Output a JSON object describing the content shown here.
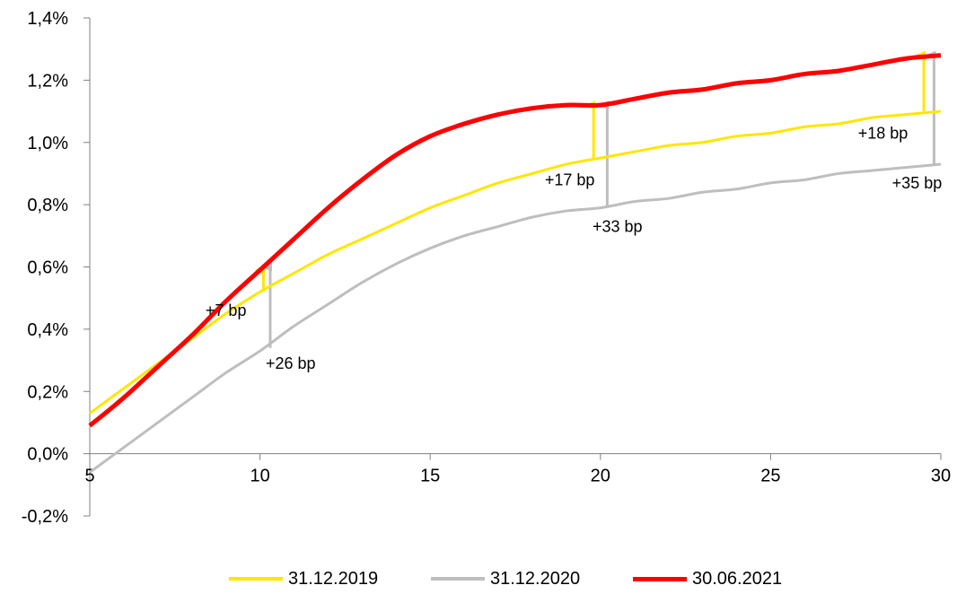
{
  "chart_data": {
    "type": "line",
    "title": "",
    "xlabel": "",
    "ylabel": "",
    "xlim": [
      5,
      30
    ],
    "ylim": [
      -0.2,
      1.4
    ],
    "x_ticks": [
      5,
      10,
      15,
      20,
      25,
      30
    ],
    "x_tick_labels": [
      "5",
      "10",
      "15",
      "20",
      "25",
      "30"
    ],
    "y_ticks": [
      -0.2,
      0.0,
      0.2,
      0.4,
      0.6,
      0.8,
      1.0,
      1.2,
      1.4
    ],
    "y_tick_labels": [
      "-0,2%",
      "0,0%",
      "0,2%",
      "0,4%",
      "0,6%",
      "0,8%",
      "1,0%",
      "1,2%",
      "1,4%"
    ],
    "grid": false,
    "legend_position": "bottom",
    "series": [
      {
        "name": "31.12.2019",
        "color": "#FFE600",
        "x": [
          5,
          6,
          7,
          8,
          9,
          10,
          11,
          12,
          13,
          14,
          15,
          16,
          17,
          18,
          19,
          20,
          21,
          22,
          23,
          24,
          25,
          26,
          27,
          28,
          29,
          30
        ],
        "values": [
          0.13,
          0.21,
          0.29,
          0.37,
          0.45,
          0.52,
          0.58,
          0.64,
          0.69,
          0.74,
          0.79,
          0.83,
          0.87,
          0.9,
          0.93,
          0.95,
          0.97,
          0.99,
          1.0,
          1.02,
          1.03,
          1.05,
          1.06,
          1.08,
          1.09,
          1.1
        ]
      },
      {
        "name": "31.12.2020",
        "color": "#BEBEBE",
        "x": [
          5,
          6,
          7,
          8,
          9,
          10,
          11,
          12,
          13,
          14,
          15,
          16,
          17,
          18,
          19,
          20,
          21,
          22,
          23,
          24,
          25,
          26,
          27,
          28,
          29,
          30
        ],
        "values": [
          -0.06,
          0.02,
          0.1,
          0.18,
          0.26,
          0.33,
          0.41,
          0.48,
          0.55,
          0.61,
          0.66,
          0.7,
          0.73,
          0.76,
          0.78,
          0.79,
          0.81,
          0.82,
          0.84,
          0.85,
          0.87,
          0.88,
          0.9,
          0.91,
          0.92,
          0.93
        ]
      },
      {
        "name": "30.06.2021",
        "color": "#FF0000",
        "x": [
          5,
          6,
          7,
          8,
          9,
          10,
          11,
          12,
          13,
          14,
          15,
          16,
          17,
          18,
          19,
          20,
          21,
          22,
          23,
          24,
          25,
          26,
          27,
          28,
          29,
          30
        ],
        "values": [
          0.09,
          0.18,
          0.28,
          0.38,
          0.49,
          0.59,
          0.69,
          0.79,
          0.88,
          0.96,
          1.02,
          1.06,
          1.09,
          1.11,
          1.12,
          1.12,
          1.14,
          1.16,
          1.17,
          1.19,
          1.2,
          1.22,
          1.23,
          1.25,
          1.27,
          1.28
        ]
      }
    ],
    "annotations": [
      {
        "text": "+7 bp",
        "x": 9,
        "y": 0.46,
        "from_series": "31.12.2019",
        "to_series": "30.06.2021",
        "arrow_x": 10.1,
        "arrow_from": 0.52,
        "arrow_to": 0.59
      },
      {
        "text": "+26 bp",
        "x": 10.9,
        "y": 0.29,
        "from_series": "31.12.2020",
        "to_series": "30.06.2021",
        "arrow_x": 10.3,
        "arrow_from": 0.34,
        "arrow_to": 0.6
      },
      {
        "text": "+17 bp",
        "x": 19.1,
        "y": 0.88,
        "from_series": "31.12.2019",
        "to_series": "30.06.2021",
        "arrow_x": 19.8,
        "arrow_from": 0.95,
        "arrow_to": 1.12
      },
      {
        "text": "+33 bp",
        "x": 20.5,
        "y": 0.73,
        "from_series": "31.12.2020",
        "to_series": "30.06.2021",
        "arrow_x": 20.2,
        "arrow_from": 0.79,
        "arrow_to": 1.12
      },
      {
        "text": "+18 bp",
        "x": 28.3,
        "y": 1.03,
        "from_series": "31.12.2019",
        "to_series": "30.06.2021",
        "arrow_x": 29.5,
        "arrow_from": 1.1,
        "arrow_to": 1.28
      },
      {
        "text": "+35 bp",
        "x": 29.3,
        "y": 0.87,
        "from_series": "31.12.2020",
        "to_series": "30.06.2021",
        "arrow_x": 29.8,
        "arrow_from": 0.93,
        "arrow_to": 1.28
      }
    ]
  }
}
